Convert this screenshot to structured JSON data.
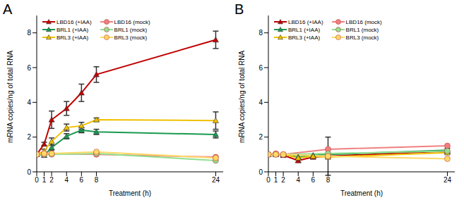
{
  "chart_data": [
    {
      "type": "line",
      "title": "A",
      "x_label": "Treatment (h)",
      "y_label": "mRNA copies/ng of total RNA",
      "x": [
        0,
        1,
        2,
        4,
        6,
        8,
        24
      ],
      "xlim": [
        0,
        25
      ],
      "xticks": [
        0,
        1,
        2,
        4,
        6,
        8,
        24
      ],
      "ylim": [
        0,
        9
      ],
      "yticks": [
        0,
        2,
        4,
        6,
        8
      ],
      "legend": "upper left",
      "series": [
        {
          "name": "LBD16 (+IAA)",
          "color": "#c00000",
          "marker": "triangle",
          "values": [
            1,
            1.6,
            3.0,
            3.65,
            4.55,
            5.6,
            7.6
          ],
          "errors": [
            0,
            0.1,
            0.5,
            0.4,
            0.5,
            0.45,
            0.5
          ]
        },
        {
          "name": "BRL1 (+IAA)",
          "color": "#1a9a50",
          "marker": "triangle",
          "values": [
            1,
            0.95,
            1.4,
            2.05,
            2.4,
            2.3,
            2.15
          ],
          "errors": [
            0,
            0.1,
            0.15,
            0.15,
            0.15,
            0.15,
            0.2
          ]
        },
        {
          "name": "BRL3 (+IAA)",
          "color": "#f0c000",
          "marker": "triangle",
          "values": [
            1,
            1.2,
            1.75,
            2.55,
            2.65,
            3.0,
            2.95
          ],
          "errors": [
            0,
            0.1,
            0.2,
            0.2,
            0.2,
            0.1,
            0.5
          ]
        },
        {
          "name": "LBD16 (mock)",
          "color": "#f08080",
          "marker": "circle",
          "values": [
            1,
            1.05,
            1.05,
            null,
            null,
            1.0,
            0.85
          ]
        },
        {
          "name": "BRL1 (mock)",
          "color": "#90e090",
          "marker": "circle",
          "values": [
            1,
            1.0,
            1.0,
            null,
            null,
            1.05,
            0.65
          ]
        },
        {
          "name": "BRL3 (mock)",
          "color": "#ffd966",
          "marker": "circle",
          "values": [
            1,
            1.05,
            1.05,
            null,
            null,
            1.15,
            0.8
          ]
        }
      ]
    },
    {
      "type": "line",
      "title": "B",
      "x_label": "Treatment (h)",
      "y_label": "mRNA copies/ng of total RNA",
      "x": [
        0,
        1,
        2,
        4,
        6,
        8,
        24
      ],
      "xlim": [
        0,
        25
      ],
      "xticks": [
        0,
        1,
        2,
        4,
        6,
        8,
        24
      ],
      "ylim": [
        0,
        9
      ],
      "yticks": [
        0,
        2,
        4,
        6,
        8
      ],
      "legend": "upper left",
      "series": [
        {
          "name": "LBD16 (+IAA)",
          "color": "#c00000",
          "marker": "triangle",
          "values": [
            1,
            1.0,
            0.95,
            0.65,
            0.85,
            0.9,
            1.2
          ],
          "errors": [
            0,
            0.1,
            0.1,
            0.1,
            0.1,
            1.1,
            0.15
          ]
        },
        {
          "name": "BRL1 (+IAA)",
          "color": "#1a9a50",
          "marker": "triangle",
          "values": [
            1,
            1.0,
            1.0,
            0.85,
            0.95,
            1.0,
            1.25
          ]
        },
        {
          "name": "BRL3 (+IAA)",
          "color": "#f0c000",
          "marker": "triangle",
          "values": [
            1,
            1.0,
            1.0,
            0.8,
            0.9,
            0.85,
            1.1
          ]
        },
        {
          "name": "LBD16 (mock)",
          "color": "#f08080",
          "marker": "circle",
          "values": [
            1,
            1.05,
            1.0,
            null,
            null,
            1.3,
            1.5
          ]
        },
        {
          "name": "BRL1 (mock)",
          "color": "#90e090",
          "marker": "circle",
          "values": [
            1,
            1.0,
            1.0,
            null,
            null,
            1.05,
            1.2
          ]
        },
        {
          "name": "BRL3 (mock)",
          "color": "#ffd966",
          "marker": "circle",
          "values": [
            1,
            1.0,
            1.0,
            null,
            null,
            0.9,
            0.75
          ]
        }
      ]
    }
  ]
}
